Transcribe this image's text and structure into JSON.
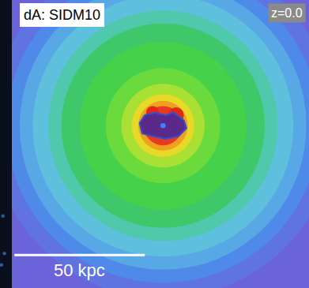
{
  "chart_data": {
    "type": "image",
    "title": "dA: SIDM10",
    "annotations": [
      "z=0.0"
    ],
    "xlim": [
      -58,
      56
    ],
    "ylim": [
      -62,
      48
    ],
    "tick_labels": false,
    "scale_bar": {
      "length": 50,
      "label": "50 kpc"
    }
  }
}
